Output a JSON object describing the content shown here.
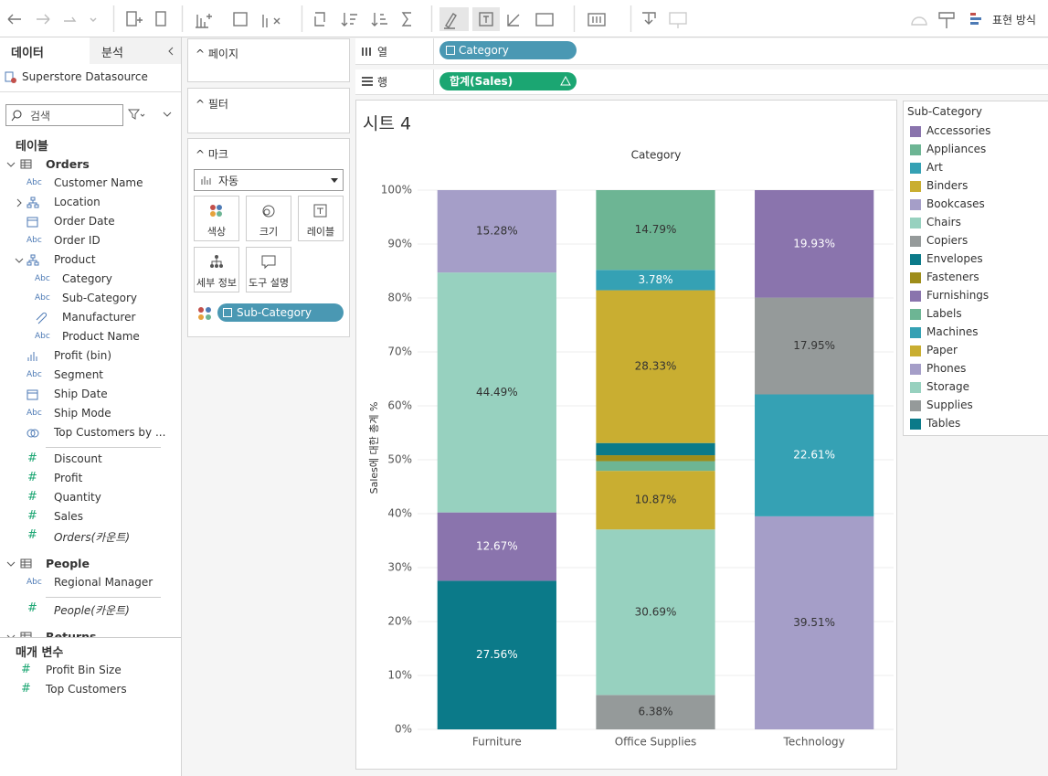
{
  "toolbar": {
    "show_me": "표현 방식"
  },
  "data_pane": {
    "tabs": [
      "데이터",
      "분석"
    ],
    "datasource": "Superstore Datasource",
    "search_placeholder": "검색",
    "tables_heading": "테이블",
    "string_icon": "Abc",
    "measure_icon": "#",
    "tables": [
      {
        "name": "Orders",
        "expanded": true,
        "dimensions": [
          {
            "name": "Customer Name",
            "type": "string"
          },
          {
            "name": "Location",
            "type": "hierarchy",
            "expanded": false
          },
          {
            "name": "Order Date",
            "type": "date"
          },
          {
            "name": "Order ID",
            "type": "string"
          },
          {
            "name": "Product",
            "type": "hierarchy",
            "expanded": true,
            "children": [
              {
                "name": "Category",
                "type": "string"
              },
              {
                "name": "Sub-Category",
                "type": "string"
              },
              {
                "name": "Manufacturer",
                "type": "group"
              },
              {
                "name": "Product Name",
                "type": "string"
              }
            ]
          },
          {
            "name": "Profit (bin)",
            "type": "bin"
          },
          {
            "name": "Segment",
            "type": "string"
          },
          {
            "name": "Ship Date",
            "type": "date"
          },
          {
            "name": "Ship Mode",
            "type": "string"
          },
          {
            "name": "Top Customers by ...",
            "type": "set"
          }
        ],
        "measures": [
          {
            "name": "Discount"
          },
          {
            "name": "Profit"
          },
          {
            "name": "Quantity"
          },
          {
            "name": "Sales"
          },
          {
            "name": "Orders(카운트)",
            "italic": true
          }
        ]
      },
      {
        "name": "People",
        "expanded": true,
        "dimensions": [
          {
            "name": "Regional Manager",
            "type": "string"
          }
        ],
        "measures": [
          {
            "name": "People(카운트)",
            "italic": true
          }
        ]
      },
      {
        "name": "Returns",
        "expanded": true
      }
    ],
    "parameters_heading": "매개 변수",
    "parameters": [
      "Profit Bin Size",
      "Top Customers"
    ]
  },
  "cards": {
    "pages": "페이지",
    "filters": "필터",
    "marks": "마크",
    "mark_type": "자동",
    "mark_buttons": [
      "색상",
      "크기",
      "레이블",
      "세부 정보",
      "도구 설명"
    ],
    "mark_pill": "Sub-Category"
  },
  "shelves": {
    "columns": {
      "label": "열",
      "pill": "Category"
    },
    "rows": {
      "label": "행",
      "pill": "합계(Sales)"
    }
  },
  "chart_data": {
    "type": "bar",
    "stacked": true,
    "title": "시트 4",
    "x_label": "Category",
    "y_label": "Sales에 대한 총계 %",
    "categories": [
      "Furniture",
      "Office Supplies",
      "Technology"
    ],
    "ylim": [
      0,
      100
    ],
    "yticks": [
      {
        "value": 0,
        "label": "0%"
      },
      {
        "value": 10,
        "label": "10%"
      },
      {
        "value": 20,
        "label": "20%"
      },
      {
        "value": 30,
        "label": "30%"
      },
      {
        "value": 40,
        "label": "40%"
      },
      {
        "value": 50,
        "label": "50%"
      },
      {
        "value": 60,
        "label": "60%"
      },
      {
        "value": 70,
        "label": "70%"
      },
      {
        "value": 80,
        "label": "80%"
      },
      {
        "value": 90,
        "label": "90%"
      },
      {
        "value": 100,
        "label": "100%"
      }
    ],
    "grid": true,
    "legend_title": "Sub-Category",
    "legend_position": "right",
    "series": [
      {
        "name": "Accessories",
        "color": "#8a74ad",
        "values": [
          null,
          null,
          19.93
        ],
        "value_labels": [
          null,
          null,
          "19.93%"
        ]
      },
      {
        "name": "Appliances",
        "color": "#6db594",
        "values": [
          null,
          14.79,
          null
        ],
        "value_labels": [
          null,
          "14.79%",
          null
        ]
      },
      {
        "name": "Art",
        "color": "#35a1b4",
        "values": [
          null,
          3.78,
          null
        ],
        "value_labels": [
          null,
          "3.78%",
          null
        ]
      },
      {
        "name": "Binders",
        "color": "#c9ae31",
        "values": [
          null,
          28.33,
          null
        ],
        "value_labels": [
          null,
          "28.33%",
          null
        ]
      },
      {
        "name": "Bookcases",
        "color": "#a59ec8",
        "values": [
          15.28,
          null,
          null
        ],
        "value_labels": [
          "15.28%",
          null,
          null
        ]
      },
      {
        "name": "Chairs",
        "color": "#97d1bf",
        "values": [
          44.49,
          null,
          null
        ],
        "value_labels": [
          "44.49%",
          null,
          null
        ]
      },
      {
        "name": "Copiers",
        "color": "#959a9a",
        "values": [
          null,
          null,
          17.95
        ],
        "value_labels": [
          null,
          null,
          "17.95%"
        ]
      },
      {
        "name": "Envelopes",
        "color": "#0b7a89",
        "values": [
          null,
          2.26,
          null
        ]
      },
      {
        "name": "Fasteners",
        "color": "#9e8d1a",
        "values": [
          null,
          1.1,
          null
        ]
      },
      {
        "name": "Furnishings",
        "color": "#8a74ad",
        "values": [
          12.67,
          null,
          null
        ],
        "value_labels": [
          "12.67%",
          null,
          null
        ]
      },
      {
        "name": "Labels",
        "color": "#6db594",
        "values": [
          null,
          1.8,
          null
        ]
      },
      {
        "name": "Machines",
        "color": "#35a1b4",
        "values": [
          null,
          null,
          22.61
        ],
        "value_labels": [
          null,
          null,
          "22.61%"
        ]
      },
      {
        "name": "Paper",
        "color": "#c9ae31",
        "values": [
          null,
          10.87,
          null
        ],
        "value_labels": [
          null,
          "10.87%",
          null
        ]
      },
      {
        "name": "Phones",
        "color": "#a59ec8",
        "values": [
          null,
          null,
          39.51
        ],
        "value_labels": [
          null,
          null,
          "39.51%"
        ]
      },
      {
        "name": "Storage",
        "color": "#97d1bf",
        "values": [
          null,
          30.69,
          null
        ],
        "value_labels": [
          null,
          "30.69%",
          null
        ]
      },
      {
        "name": "Supplies",
        "color": "#959a9a",
        "values": [
          null,
          6.38,
          null
        ],
        "value_labels": [
          null,
          "6.38%",
          null
        ]
      },
      {
        "name": "Tables",
        "color": "#0b7a89",
        "values": [
          27.56,
          null,
          null
        ],
        "value_labels": [
          "27.56%",
          null,
          null
        ]
      }
    ]
  }
}
